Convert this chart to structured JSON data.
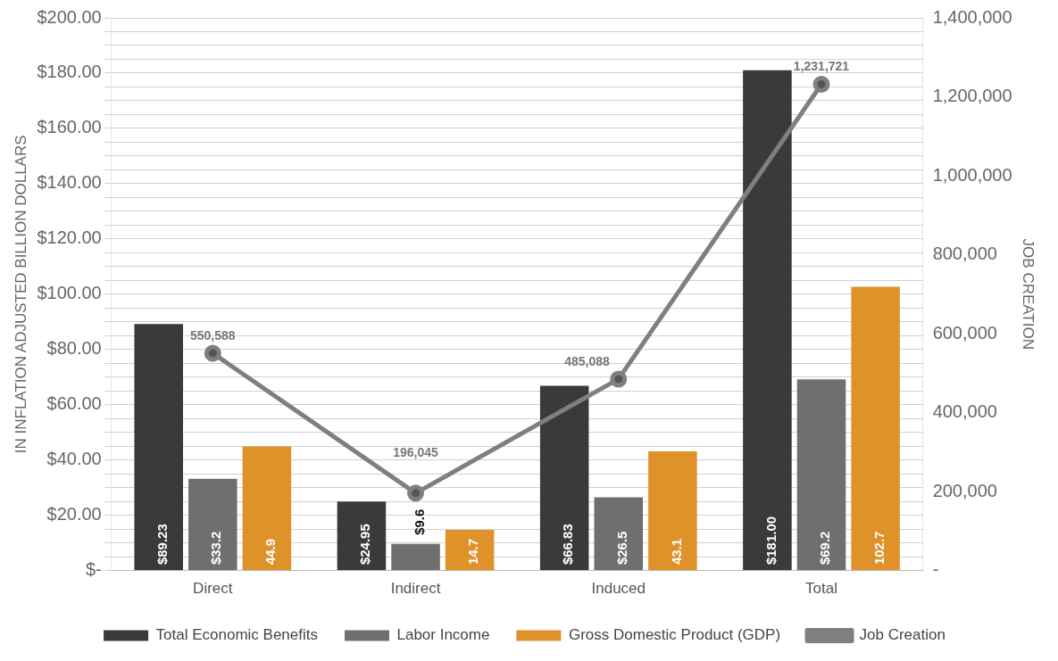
{
  "chart_data": {
    "type": "bar",
    "ylabel": "IN INFLATION ADJUSTED BILLION DOLLARS",
    "y2label": "JOB CREATION",
    "categories": [
      "Direct",
      "Indirect",
      "Induced",
      "Total"
    ],
    "series": [
      {
        "name": "Total Economic Benefits",
        "color": "#3a3a3a",
        "values": [
          89.23,
          24.95,
          66.83,
          181.0
        ],
        "value_labels": [
          "$89.23",
          "$24.95",
          "$66.83",
          "$181.00"
        ]
      },
      {
        "name": "Labor Income",
        "color": "#6f6f70",
        "values": [
          33.2,
          9.6,
          26.5,
          69.2
        ],
        "value_labels": [
          "$33.2",
          "$9.6",
          "$26.5",
          "$69.2"
        ]
      },
      {
        "name": "Gross Domestic Product (GDP)",
        "color": "#e0922a",
        "values": [
          44.9,
          14.7,
          43.1,
          102.7
        ],
        "value_labels": [
          "44.9",
          "14.7",
          "43.1",
          "102.7"
        ]
      },
      {
        "name": "Job Creation",
        "type": "line",
        "axis": "y2",
        "color": "#7f7f7f",
        "marker": "circle",
        "values": [
          550588,
          196045,
          485088,
          1231721
        ],
        "value_labels": [
          "550,588",
          "196,045",
          "485,088",
          "1,231,721"
        ]
      }
    ],
    "ylim": [
      0,
      200
    ],
    "yticks": [
      {
        "value": 0,
        "label": "$-"
      },
      {
        "value": 5,
        "label": null
      },
      {
        "value": 10,
        "label": null
      },
      {
        "value": 15,
        "label": null
      },
      {
        "value": 20,
        "label": "$20.00"
      },
      {
        "value": 25,
        "label": null
      },
      {
        "value": 30,
        "label": null
      },
      {
        "value": 35,
        "label": null
      },
      {
        "value": 40,
        "label": "$40.00"
      },
      {
        "value": 45,
        "label": null
      },
      {
        "value": 50,
        "label": null
      },
      {
        "value": 55,
        "label": null
      },
      {
        "value": 60,
        "label": "$60.00"
      },
      {
        "value": 65,
        "label": null
      },
      {
        "value": 70,
        "label": null
      },
      {
        "value": 75,
        "label": null
      },
      {
        "value": 80,
        "label": "$80.00"
      },
      {
        "value": 85,
        "label": null
      },
      {
        "value": 90,
        "label": null
      },
      {
        "value": 95,
        "label": null
      },
      {
        "value": 100,
        "label": "$100.00"
      },
      {
        "value": 105,
        "label": null
      },
      {
        "value": 110,
        "label": null
      },
      {
        "value": 115,
        "label": null
      },
      {
        "value": 120,
        "label": "$120.00"
      },
      {
        "value": 125,
        "label": null
      },
      {
        "value": 130,
        "label": null
      },
      {
        "value": 135,
        "label": null
      },
      {
        "value": 140,
        "label": "$140.00"
      },
      {
        "value": 145,
        "label": null
      },
      {
        "value": 150,
        "label": null
      },
      {
        "value": 155,
        "label": null
      },
      {
        "value": 160,
        "label": "$160.00"
      },
      {
        "value": 165,
        "label": null
      },
      {
        "value": 170,
        "label": null
      },
      {
        "value": 175,
        "label": null
      },
      {
        "value": 180,
        "label": "$180.00"
      },
      {
        "value": 185,
        "label": null
      },
      {
        "value": 190,
        "label": null
      },
      {
        "value": 195,
        "label": null
      },
      {
        "value": 200,
        "label": "$200.00"
      }
    ],
    "y2lim": [
      0,
      1400000
    ],
    "y2ticks": [
      {
        "value": 0,
        "label": "-"
      },
      {
        "value": 200000,
        "label": "200,000"
      },
      {
        "value": 400000,
        "label": "400,000"
      },
      {
        "value": 600000,
        "label": "600,000"
      },
      {
        "value": 800000,
        "label": "800,000"
      },
      {
        "value": 1000000,
        "label": "1,000,000"
      },
      {
        "value": 1200000,
        "label": "1,200,000"
      },
      {
        "value": 1400000,
        "label": "1,400,000"
      }
    ],
    "grid": "y",
    "legend": "bottom"
  }
}
